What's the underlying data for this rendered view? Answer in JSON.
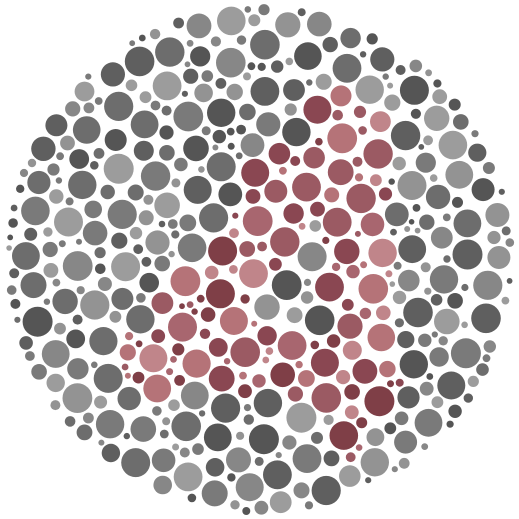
{
  "plate": {
    "hidden_figure": "4",
    "colors": {
      "background": "#ffffff",
      "figure_palette": [
        "#b57378",
        "#9b5a63",
        "#8a4752",
        "#c0858a",
        "#7f3f47",
        "#a8666f"
      ],
      "ground_palette": [
        "#5f5f5f",
        "#6d6d6d",
        "#7a7a7a",
        "#878787",
        "#939393",
        "#555555",
        "#9c9c9c"
      ]
    }
  }
}
